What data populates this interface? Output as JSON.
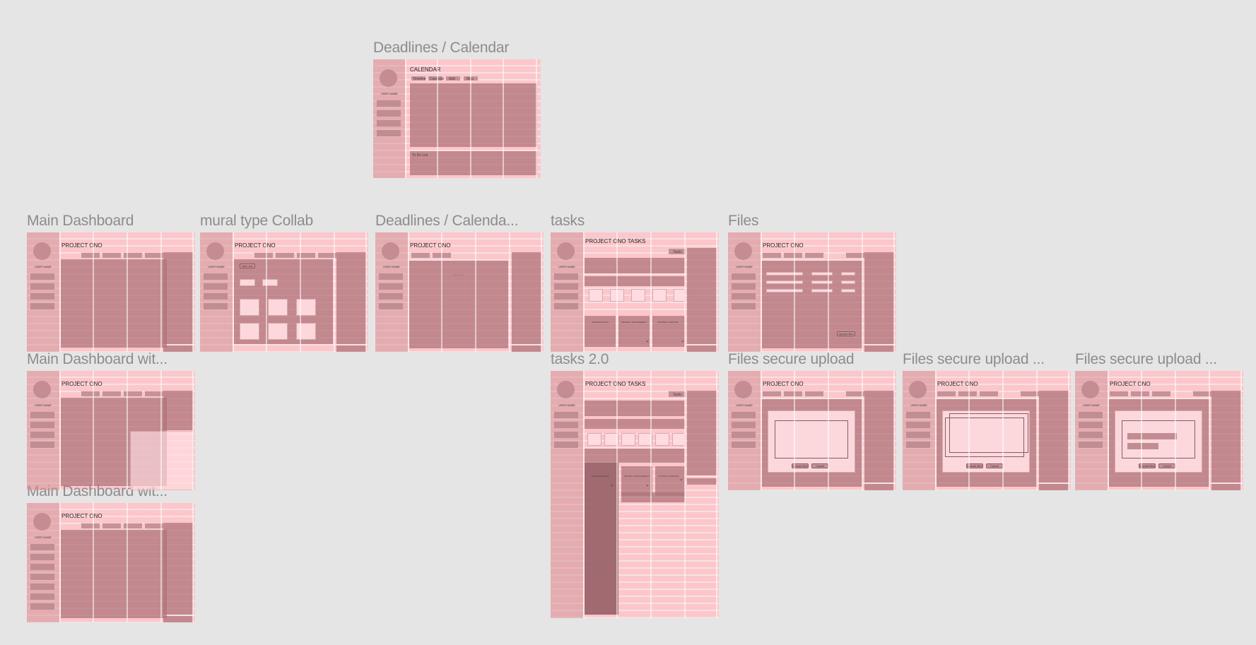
{
  "frames": {
    "calendar_top": {
      "label": "Deadlines / Calendar",
      "title": "CALENDAR",
      "user": "USER NAME",
      "tabs": [
        "Timeline",
        "Calendar",
        "Add",
        "Map"
      ],
      "todo": "To Do List"
    },
    "main_dashboard": {
      "label": "Main Dashboard",
      "title": "PROJECT ONO",
      "user": "USER NAME"
    },
    "mural": {
      "label": "mural type Collab",
      "title": "PROJECT ONO",
      "user": "USER NAME",
      "btn": "Add new"
    },
    "deadlines2": {
      "label": "Deadlines / Calenda...",
      "title": "PROJECT ONO",
      "user": "USER NAME",
      "month": "March"
    },
    "tasks": {
      "label": "tasks",
      "title": "PROJECT ONO TASKS",
      "user": "USER NAME",
      "tab_label": "Tasks",
      "columns": [
        "CREATIVE TEAM",
        "PROJECT MANAGEMENT",
        "CONTENT CREATOR"
      ]
    },
    "files": {
      "label": "Files",
      "title": "PROJECT ONO",
      "user": "USER NAME",
      "btn": "Upload files"
    },
    "main_dashboard_w1": {
      "label": "Main Dashboard wit...",
      "title": "PROJECT ONO",
      "user": "USER NAME"
    },
    "tasks2": {
      "label": "tasks 2.0",
      "title": "PROJECT ONO TASKS",
      "user": "USER NAME",
      "tab_label": "Tasks",
      "columns": [
        "CREATIVE TEAM",
        "PROJECT MANAGEMENT",
        "CONTENT CREATOR"
      ]
    },
    "files_upload1": {
      "label": "Files secure upload",
      "title": "PROJECT ONO",
      "user": "USER NAME",
      "btn1": "Upload files",
      "btn2": "Cancel"
    },
    "files_upload2": {
      "label": "Files secure upload ...",
      "title": "PROJECT ONO",
      "user": "USER NAME",
      "btn1": "Upload files",
      "btn2": "Cancel"
    },
    "files_upload3": {
      "label": "Files secure upload ...",
      "title": "PROJECT ONO",
      "user": "USER NAME",
      "btn1": "Upload files",
      "btn2": "Cancel"
    },
    "main_dashboard_w2": {
      "label": "Main Dashboard wit...",
      "title": "PROJECT ONO",
      "user": "USER NAME"
    }
  },
  "colors": {
    "canvas": "#e5e5e5",
    "frame_pink": "#ffc8cd",
    "block": "#af737a",
    "label_gray": "#8c8c8c"
  }
}
